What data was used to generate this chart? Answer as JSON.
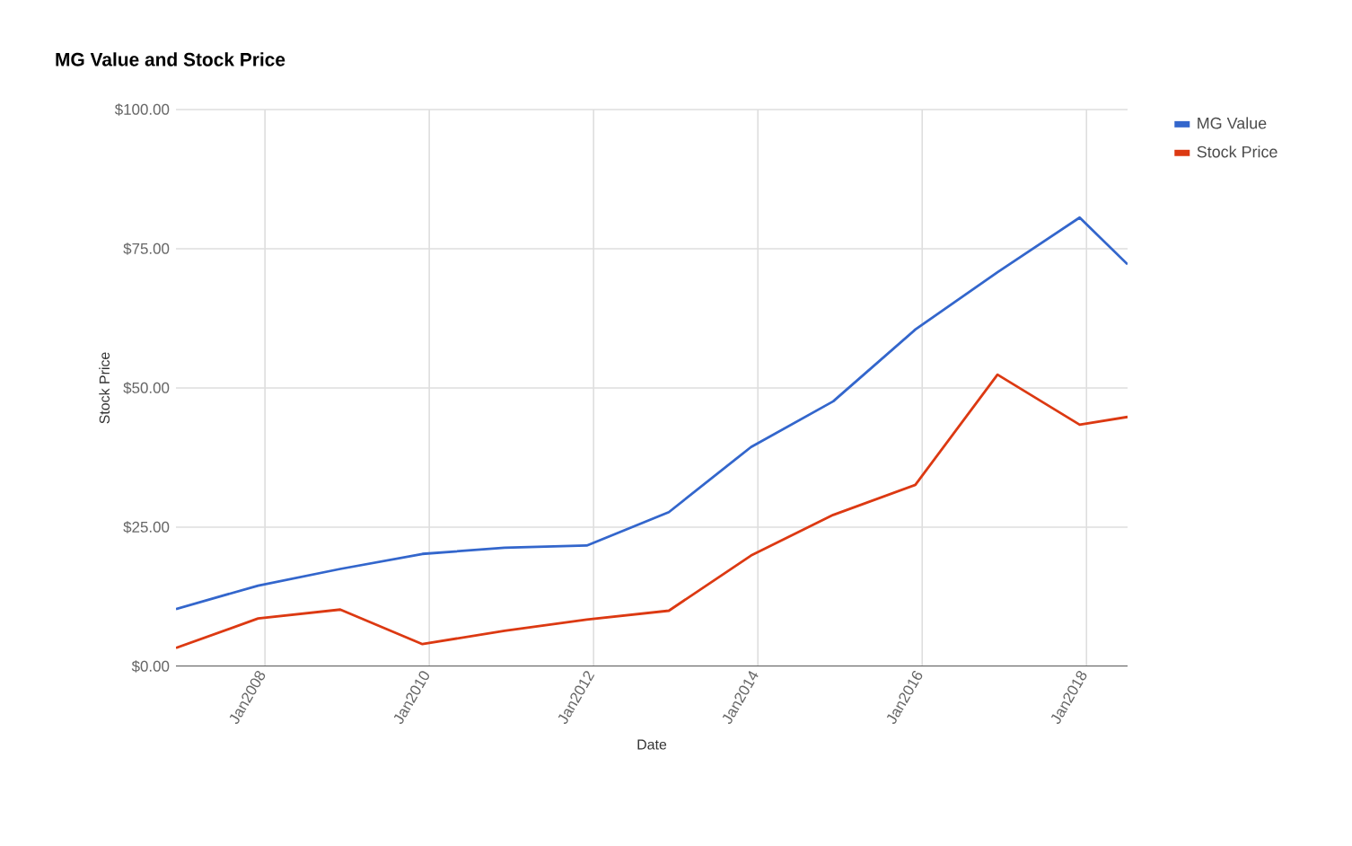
{
  "chart_data": {
    "type": "line",
    "title": "MG Value and Stock Price",
    "xlabel": "Date",
    "ylabel": "Stock Price",
    "x": [
      "2006-12",
      "2007-12",
      "2008-12",
      "2009-12",
      "2010-12",
      "2011-12",
      "2012-12",
      "2013-12",
      "2014-12",
      "2015-12",
      "2016-12",
      "2017-12",
      "2018-07"
    ],
    "series": [
      {
        "name": "MG Value",
        "color": "#3366cc",
        "values": [
          10.3,
          14.5,
          17.5,
          20.2,
          21.3,
          21.7,
          27.7,
          39.4,
          47.6,
          60.5,
          70.8,
          80.6,
          72.2
        ]
      },
      {
        "name": "Stock Price",
        "color": "#dc3912",
        "values": [
          3.3,
          8.6,
          10.2,
          4.0,
          6.4,
          8.4,
          10.0,
          19.9,
          27.2,
          32.6,
          52.4,
          43.4,
          44.8
        ]
      }
    ],
    "xlim": [
      "2006-12",
      "2018-07"
    ],
    "xticks": [
      {
        "value": "2008-01",
        "label": "Jan2008"
      },
      {
        "value": "2010-01",
        "label": "Jan2010"
      },
      {
        "value": "2012-01",
        "label": "Jan2012"
      },
      {
        "value": "2014-01",
        "label": "Jan2014"
      },
      {
        "value": "2016-01",
        "label": "Jan2016"
      },
      {
        "value": "2018-01",
        "label": "Jan2018"
      }
    ],
    "ylim": [
      0,
      100
    ],
    "yticks": [
      {
        "value": 0,
        "label": "$0.00"
      },
      {
        "value": 25,
        "label": "$25.00"
      },
      {
        "value": 50,
        "label": "$50.00"
      },
      {
        "value": 75,
        "label": "$75.00"
      },
      {
        "value": 100,
        "label": "$100.00"
      }
    ],
    "grid": true,
    "legend": "top right",
    "marker": "none",
    "line_style": "solid"
  }
}
